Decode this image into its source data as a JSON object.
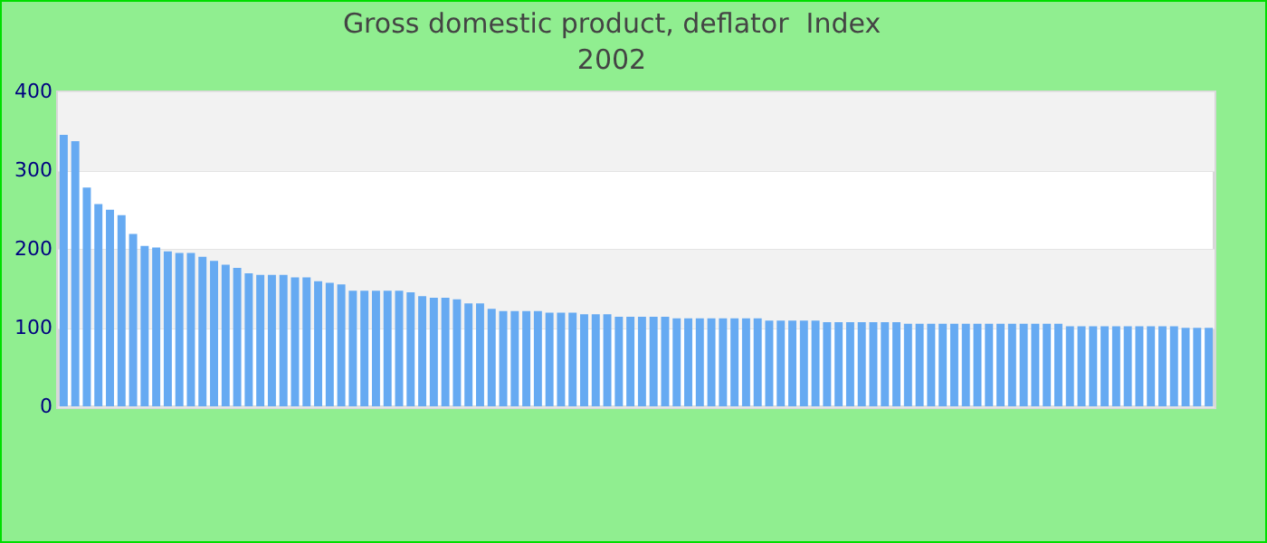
{
  "chart_data": {
    "type": "bar",
    "title": "Gross domestic product, deflator  Index",
    "subtitle": "2002",
    "categories": [
      null,
      null,
      null,
      null,
      null,
      null,
      null,
      null,
      null,
      null,
      null,
      null,
      null,
      null,
      null,
      null,
      null,
      null,
      null,
      null,
      null,
      null,
      null,
      null,
      null,
      null,
      null,
      null,
      null,
      null,
      null,
      null,
      null,
      null,
      null,
      null,
      null,
      null,
      null,
      null,
      null,
      null,
      null,
      null,
      null,
      null,
      null,
      null,
      null,
      null,
      null,
      null,
      null,
      null,
      null,
      null,
      null,
      null,
      null,
      null,
      null,
      null,
      null,
      null,
      null,
      null,
      null,
      null,
      null,
      null,
      null,
      null,
      null,
      null,
      null,
      null,
      null,
      null,
      null,
      null,
      null,
      null,
      null,
      null,
      null,
      null,
      null,
      null,
      null,
      null,
      null,
      null,
      null,
      null,
      null,
      null,
      null,
      null,
      null,
      null
    ],
    "values": [
      346,
      338,
      279,
      258,
      251,
      244,
      220,
      205,
      203,
      198,
      196,
      196,
      191,
      186,
      181,
      177,
      170,
      168,
      168,
      168,
      165,
      165,
      160,
      158,
      156,
      148,
      148,
      148,
      148,
      148,
      146,
      141,
      139,
      139,
      137,
      132,
      132,
      125,
      122,
      122,
      122,
      122,
      120,
      120,
      120,
      118,
      118,
      118,
      115,
      115,
      115,
      115,
      115,
      113,
      113,
      113,
      113,
      113,
      113,
      113,
      113,
      110,
      110,
      110,
      110,
      110,
      108,
      108,
      108,
      108,
      108,
      108,
      108,
      106,
      106,
      106,
      106,
      106,
      106,
      106,
      106,
      106,
      106,
      106,
      106,
      106,
      106,
      103,
      103,
      103,
      103,
      103,
      103,
      103,
      103,
      103,
      103,
      101,
      101,
      101
    ],
    "color": "#66aaf2",
    "ylim": [
      0,
      400
    ],
    "yticks": [
      0,
      100,
      200,
      300,
      400
    ],
    "grid": "y"
  }
}
